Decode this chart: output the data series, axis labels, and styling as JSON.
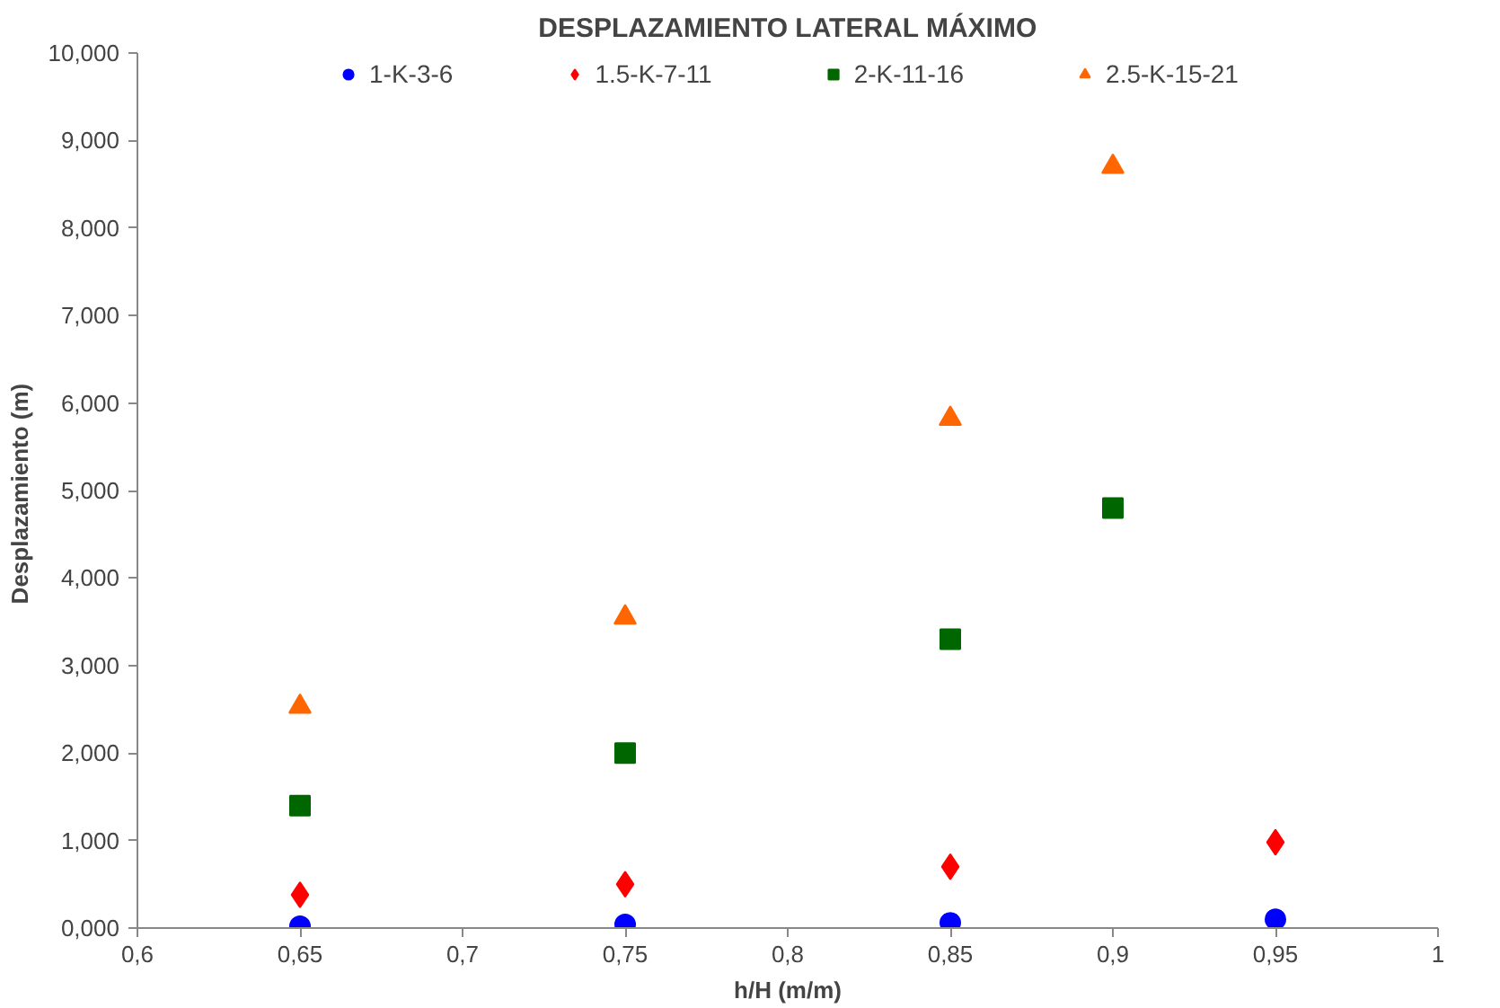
{
  "chart_data": {
    "type": "scatter",
    "title": "DESPLAZAMIENTO LATERAL MÁXIMO",
    "xlabel": "h/H (m/m)",
    "ylabel": "Desplazamiento  (m)",
    "xlim": [
      0.6,
      1
    ],
    "xticks": [
      {
        "value": 0.6,
        "label": "0,6"
      },
      {
        "value": 0.65,
        "label": "0,65"
      },
      {
        "value": 0.7,
        "label": "0,7"
      },
      {
        "value": 0.75,
        "label": "0,75"
      },
      {
        "value": 0.8,
        "label": "0,8"
      },
      {
        "value": 0.85,
        "label": "0,85"
      },
      {
        "value": 0.9,
        "label": "0,9"
      },
      {
        "value": 0.95,
        "label": "0,95"
      },
      {
        "value": 1,
        "label": "1"
      }
    ],
    "ylim": [
      0,
      10
    ],
    "yticks": [
      {
        "value": 0,
        "label": "0,000"
      },
      {
        "value": 1,
        "label": "1,000"
      },
      {
        "value": 2,
        "label": "2,000"
      },
      {
        "value": 3,
        "label": "3,000"
      },
      {
        "value": 4,
        "label": "4,000"
      },
      {
        "value": 5,
        "label": "5,000"
      },
      {
        "value": 6,
        "label": "6,000"
      },
      {
        "value": 7,
        "label": "7,000"
      },
      {
        "value": 8,
        "label": "8,000"
      },
      {
        "value": 9,
        "label": "9,000"
      },
      {
        "value": 10,
        "label": "10,000"
      }
    ],
    "grid": false,
    "legend": "top",
    "series": [
      {
        "name": "1-K-3-6",
        "color": "#0000ff",
        "marker": "circle",
        "x": [
          0.65,
          0.75,
          0.85,
          0.95
        ],
        "values": [
          0.02,
          0.04,
          0.06,
          0.1
        ]
      },
      {
        "name": "1.5-K-7-11",
        "color": "#ff0000",
        "marker": "diamond",
        "x": [
          0.65,
          0.75,
          0.85,
          0.95
        ],
        "values": [
          0.38,
          0.5,
          0.7,
          0.98
        ]
      },
      {
        "name": "2-K-11-16",
        "color": "#006600",
        "marker": "square",
        "x": [
          0.65,
          0.75,
          0.85,
          0.9
        ],
        "values": [
          1.4,
          2.0,
          3.3,
          4.8
        ]
      },
      {
        "name": "2.5-K-15-21",
        "color": "#ff6600",
        "marker": "triangle",
        "x": [
          0.65,
          0.75,
          0.85,
          0.9
        ],
        "values": [
          2.53,
          3.55,
          5.82,
          8.7
        ]
      }
    ]
  }
}
